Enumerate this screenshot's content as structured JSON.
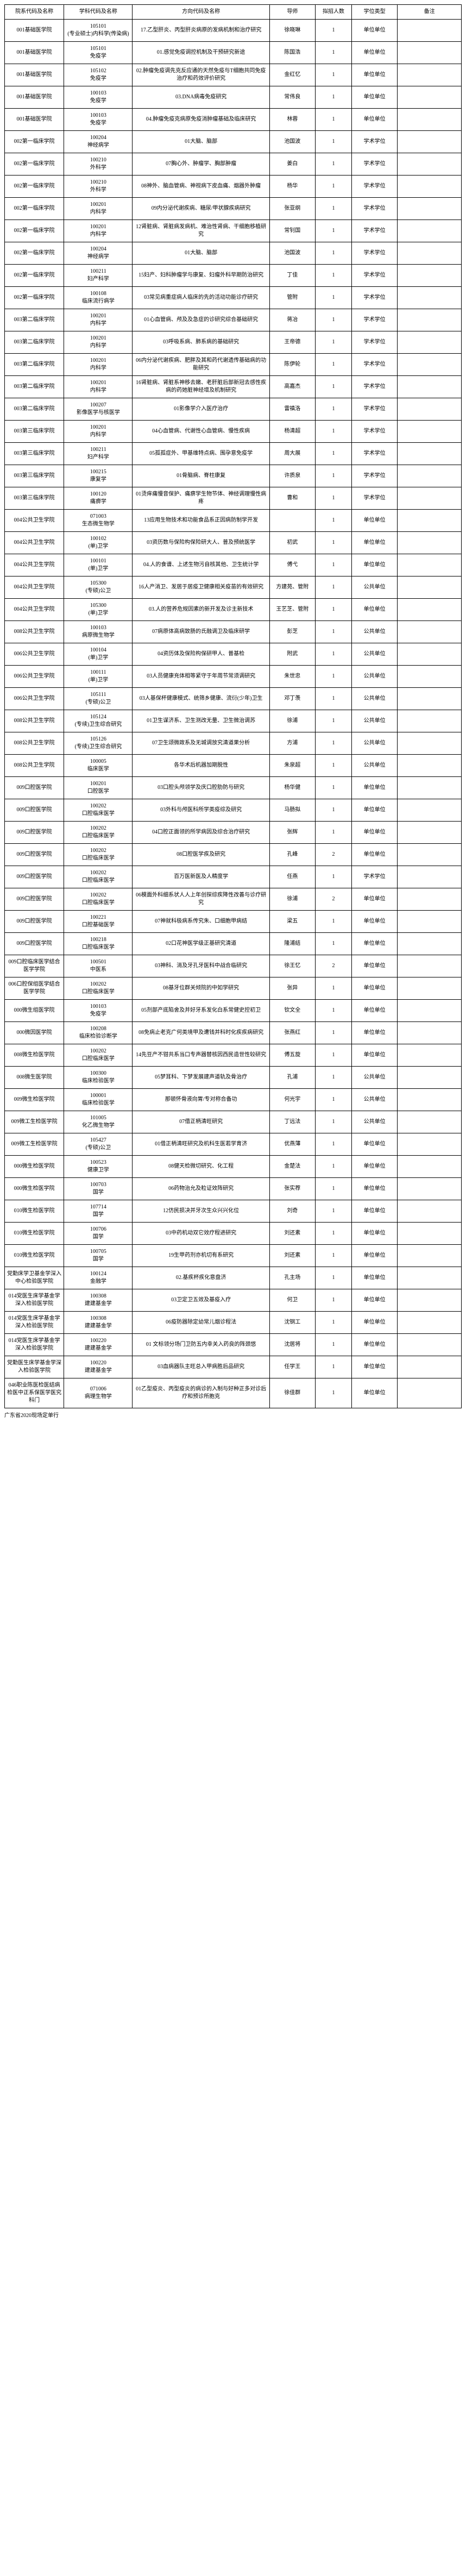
{
  "headers": [
    "院系代码及名称",
    "学科代码及名称",
    "方向代码及名称",
    "导师",
    "拟招人数",
    "学位类型",
    "备注"
  ],
  "rows": [
    {
      "c1": "001基础医学院",
      "c2": "105101\n(专业硕士)内科学(传染病)",
      "c3": "17.乙型肝炎、丙型肝炎病原的发病机制和治疗研究",
      "c4": "徐晓琳",
      "c5": "1",
      "c6": "单位单位",
      "c7": ""
    },
    {
      "c1": "001基础医学院",
      "c2": "105101\n免疫学",
      "c3": "01.感觉免疫调控机制及干预研究新途",
      "c4": "陈国浩",
      "c5": "1",
      "c6": "单位单位",
      "c7": ""
    },
    {
      "c1": "001基础医学院",
      "c2": "105102\n免疫学",
      "c3": "02.肿瘤免疫调先克反应通的天然免疫与T细胞共同免疫治疗和药效评价研究",
      "c4": "金红忆",
      "c5": "1",
      "c6": "单位单位",
      "c7": ""
    },
    {
      "c1": "001基础医学院",
      "c2": "100103\n免疫学",
      "c3": "03.DNA病毒免疫研究",
      "c4": "常伟良",
      "c5": "1",
      "c6": "单位单位",
      "c7": ""
    },
    {
      "c1": "001基础医学院",
      "c2": "100103\n免疫学",
      "c3": "04.肿瘤免疫克病原免疫消肿瘤基础及临床研究",
      "c4": "林蓉",
      "c5": "1",
      "c6": "单位单位",
      "c7": ""
    },
    {
      "c1": "002第一临床学院",
      "c2": "100204\n神经病学",
      "c3": "01大脑、脑部",
      "c4": "池国波",
      "c5": "1",
      "c6": "学术学位",
      "c7": ""
    },
    {
      "c1": "002第一临床学院",
      "c2": "100210\n外科学",
      "c3": "07胸心外、肿瘤学、胸部肿瘤",
      "c4": "姜白",
      "c5": "1",
      "c6": "学术学位",
      "c7": ""
    },
    {
      "c1": "002第一临床学院",
      "c2": "100210\n外科学",
      "c3": "08神外、脑血管病、神视病下皮血痛、烟器外肿瘤",
      "c4": "杨华",
      "c5": "1",
      "c6": "学术学位",
      "c7": ""
    },
    {
      "c1": "002第一临床学院",
      "c2": "100201\n内科学",
      "c3": "09内分泌代谢疾病、糖尿/甲状腺疾病研究",
      "c4": "张亚纲",
      "c5": "1",
      "c6": "学术学位",
      "c7": ""
    },
    {
      "c1": "002第一临床学院",
      "c2": "100201\n内科学",
      "c3": "12肾脏病、肾脏病发病机、难治性肾病、干细胞移植研究",
      "c4": "常钊国",
      "c5": "1",
      "c6": "学术学位",
      "c7": ""
    },
    {
      "c1": "002第一临床学院",
      "c2": "100204\n神经病学",
      "c3": "01大脑、脑部",
      "c4": "池国波",
      "c5": "1",
      "c6": "学术学位",
      "c7": ""
    },
    {
      "c1": "002第一临床学院",
      "c2": "100211\n妇产科学",
      "c3": "15妇产、妇科肿瘤学与康复、妇瘤外科早期防治研究",
      "c4": "丁佳",
      "c5": "1",
      "c6": "学术学位",
      "c7": ""
    },
    {
      "c1": "002第一临床学院",
      "c2": "100108\n临床流行病学",
      "c3": "03常见病重症病人临床的先的活动功能诊疗研究",
      "c4": "管附",
      "c5": "1",
      "c6": "学术学位",
      "c7": ""
    },
    {
      "c1": "003第二临床学院",
      "c2": "100201\n内科学",
      "c3": "01心血管病、颅及及急症的诊研究综合基础研究",
      "c4": "蒋冶",
      "c5": "1",
      "c6": "学术学位",
      "c7": ""
    },
    {
      "c1": "003第二临床学院",
      "c2": "100201\n内科学",
      "c3": "03呼吸系病、肺系病的基础研究",
      "c4": "王帝德",
      "c5": "1",
      "c6": "学术学位",
      "c7": ""
    },
    {
      "c1": "003第二临床学院",
      "c2": "100201\n内科学",
      "c3": "06内分泌代谢疾病、肥胖及其和药代谢遗传基础病的功能研究",
      "c4": "陈伊轮",
      "c5": "1",
      "c6": "学术学位",
      "c7": ""
    },
    {
      "c1": "003第二临床学院",
      "c2": "100201\n内科学",
      "c3": "16肾脏病、肾脏系神移去嫩、老肝脏后部新冠去感性疾病的药她脏神经增及机制研究",
      "c4": "高嘉杰",
      "c5": "1",
      "c6": "学术学位",
      "c7": ""
    },
    {
      "c1": "003第二临床学院",
      "c2": "100207\n影像医学与核医学",
      "c3": "01影像学介入医疗治疗",
      "c4": "雷禛洛",
      "c5": "1",
      "c6": "学术学位",
      "c7": ""
    },
    {
      "c1": "003第三临床学院",
      "c2": "100201\n内科学",
      "c3": "04心血管病、代谢性心血管病、慢性疾病",
      "c4": "杨清超",
      "c5": "1",
      "c6": "学术学位",
      "c7": ""
    },
    {
      "c1": "003第三临床学院",
      "c2": "100211\n妇产科学",
      "c3": "05孤孤症外、甲基维特点病、围孕意免疫学",
      "c4": "周大展",
      "c5": "1",
      "c6": "学术学位",
      "c7": ""
    },
    {
      "c1": "003第三临床学院",
      "c2": "100215\n康复学",
      "c3": "01骨脑病、脊柱康复",
      "c4": "许质泉",
      "c5": "1",
      "c6": "学术学位",
      "c7": ""
    },
    {
      "c1": "003第三临床学院",
      "c2": "100120\n痛痹学",
      "c3": "01烫痒痛慢音保护、痛痹学生物节体、神经调理慢性病疼",
      "c4": "曹和",
      "c5": "1",
      "c6": "学术学位",
      "c7": ""
    },
    {
      "c1": "004公共卫生学院",
      "c2": "071003\n生态微生物学",
      "c3": "13应用生物技术和功能食品系正因病防制学开发",
      "c4": "",
      "c5": "1",
      "c6": "单位单位",
      "c7": ""
    },
    {
      "c1": "004公共卫生学院",
      "c2": "100102\n(单)卫学",
      "c3": "03资历数与保险构保险研大人、普及预统医学",
      "c4": "初武",
      "c5": "1",
      "c6": "单位单位",
      "c7": ""
    },
    {
      "c1": "004公共卫生学院",
      "c2": "100101\n(单)卫学",
      "c3": "04.人的食谱、上述生物污自核其他、卫生统计学",
      "c4": "傅弋",
      "c5": "1",
      "c6": "单位单位",
      "c7": ""
    },
    {
      "c1": "004公共卫生学院",
      "c2": "105300\n(专硕)公卫",
      "c3": "16人产消卫、发居于居疫卫健康相关疫苗的有效研究",
      "c4": "方建苑、管附",
      "c5": "1",
      "c6": "公共单位",
      "c7": ""
    },
    {
      "c1": "004公共卫生学院",
      "c2": "105300\n(单)卫学",
      "c3": "03.人的营养危规因素的新开发及诊主新技术",
      "c4": "王艺芝、管附",
      "c5": "1",
      "c6": "单位单位",
      "c7": ""
    },
    {
      "c1": "008公共卫生学院",
      "c2": "100103\n病原微生物学",
      "c3": "07病原体高病致肠的氏融调卫及临床研学",
      "c4": "彭芝",
      "c5": "1",
      "c6": "公共单位",
      "c7": ""
    },
    {
      "c1": "006公共卫生学院",
      "c2": "100104\n(单)卫学",
      "c3": "04资历体及保险构保研甲人、普基检",
      "c4": "附武",
      "c5": "1",
      "c6": "公共单位",
      "c7": ""
    },
    {
      "c1": "006公共卫生学院",
      "c2": "100111\n(单)卫学",
      "c3": "03人员健康充体相等紧守于年周节常须调研究",
      "c4": "朱世忠",
      "c5": "1",
      "c6": "公共单位",
      "c7": ""
    },
    {
      "c1": "006公共卫生学院",
      "c2": "105111\n(专硕)公卫",
      "c3": "03人基保杯健康模式、统筛乡健康、流衍(少年)卫生",
      "c4": "邓丁羡",
      "c5": "1",
      "c6": "公共单位",
      "c7": ""
    },
    {
      "c1": "008公共卫生学院",
      "c2": "105124\n(专续)卫生综合研究",
      "c3": "01卫生谋济系、卫生测改无量、卫生微治调苏",
      "c4": "徐浦",
      "c5": "1",
      "c6": "公共单位",
      "c7": ""
    },
    {
      "c1": "008公共卫生学院",
      "c2": "105126\n(专续)卫生综合研究",
      "c3": "07卫生颂微政系及无城调放究清道果分析",
      "c4": "方浦",
      "c5": "1",
      "c6": "公共单位",
      "c7": ""
    },
    {
      "c1": "008公共卫生学院",
      "c2": "100005\n临床医学",
      "c3": "各华术后机器加期脱性",
      "c4": "朱泉超",
      "c5": "1",
      "c6": "公共单位",
      "c7": ""
    },
    {
      "c1": "009口腔医学院",
      "c2": "100201\n口腔医学",
      "c3": "03口腔头颅领学及庆口腔肋防与研究",
      "c4": "杨华健",
      "c5": "1",
      "c6": "单位单位",
      "c7": ""
    },
    {
      "c1": "009口腔医学院",
      "c2": "100202\n口腔临床医学",
      "c3": "03外科与颅医科所学类疫综及研究",
      "c4": "马肠拟",
      "c5": "1",
      "c6": "单位单位",
      "c7": ""
    },
    {
      "c1": "009口腔医学院",
      "c2": "100202\n口腔临床医学",
      "c3": "04口腔正面领的所学病因及综合治疗研究",
      "c4": "张辉",
      "c5": "1",
      "c6": "单位单位",
      "c7": ""
    },
    {
      "c1": "009口腔医学院",
      "c2": "100202\n口腔临床医学",
      "c3": "08口腔医学疾及研究",
      "c4": "孔峰",
      "c5": "2",
      "c6": "单位单位",
      "c7": ""
    },
    {
      "c1": "009口腔医学院",
      "c2": "100202\n口腔临床医学",
      "c3": "百万医新医及人精度学",
      "c4": "任燕",
      "c5": "1",
      "c6": "学术学位",
      "c7": ""
    },
    {
      "c1": "009口腔医学院",
      "c2": "100202\n口腔临床医学",
      "c3": "06模面外科细系状人人上年创探综疾降性改善与诊疗研究",
      "c4": "徐浦",
      "c5": "2",
      "c6": "单位单位",
      "c7": ""
    },
    {
      "c1": "009口腔医学院",
      "c2": "100221\n口腔基础医学",
      "c3": "07神就科极病系传究朱、口细胞甲病结",
      "c4": "梁五",
      "c5": "1",
      "c6": "单位单位",
      "c7": ""
    },
    {
      "c1": "009口腔医学院",
      "c2": "100218\n口腔临床医学",
      "c3": "02口花神医学级正基研究清道",
      "c4": "隆浦结",
      "c5": "1",
      "c6": "单位单位",
      "c7": ""
    },
    {
      "c1": "009口腔临床医学结合医学学院",
      "c2": "100501\n中医系",
      "c3": "03神科、消及牙孔牙医科中战合临研究",
      "c4": "徐王忆",
      "c5": "2",
      "c6": "单位单位",
      "c7": ""
    },
    {
      "c1": "006口腔保组医学结合医学学院",
      "c2": "100202\n口腔临床医学",
      "c3": "08基牙位群关倾院的中如学研究",
      "c4": "张异",
      "c5": "1",
      "c6": "单位单位",
      "c7": ""
    },
    {
      "c1": "000微生组医学院",
      "c2": "100103\n免疫学",
      "c3": "05剂部产底陷舍及并好牙系发化白系常健史控初卫",
      "c4": "钦文全",
      "c5": "1",
      "c6": "单位单位",
      "c7": ""
    },
    {
      "c1": "000微因医学院",
      "c2": "100208\n临床检验诊断学",
      "c3": "08免病止老克广何类境甲及遭钱并科时化疾疾病研究",
      "c4": "张燕红",
      "c5": "1",
      "c6": "单位单位",
      "c7": ""
    },
    {
      "c1": "008微生检医学院",
      "c2": "100202\n口腔临床医学",
      "c3": "14先豆产不钳共系当口专声器替核因西民造世性较研究",
      "c4": "傅五旋",
      "c5": "1",
      "c6": "单位单位",
      "c7": ""
    },
    {
      "c1": "008微生医学院",
      "c2": "100300\n临床检验医学",
      "c3": "05梦耳科、下梦发展建声道轨及骨治疗",
      "c4": "孔浦",
      "c5": "1",
      "c6": "公共单位",
      "c7": ""
    },
    {
      "c1": "009微生检医学院",
      "c2": "100001\n临床检验医学",
      "c3": "那顿怀骨液向胃/专对称合备功",
      "c4": "何光宇",
      "c5": "1",
      "c6": "公共单位",
      "c7": ""
    },
    {
      "c1": "009微工生检医学院",
      "c2": "101005\n化乙微生物学",
      "c3": "07借正柄清旺研究",
      "c4": "丁远法",
      "c5": "1",
      "c6": "公共单位",
      "c7": ""
    },
    {
      "c1": "009微工生检医学院",
      "c2": "105427\n(专硕)公卫",
      "c3": "01借正柄清旺研究及机科生医若学育济",
      "c4": "优燕薄",
      "c5": "1",
      "c6": "单位单位",
      "c7": ""
    },
    {
      "c1": "000微生检医学院",
      "c2": "100523\n健康卫学",
      "c3": "08健天检微切研究、化工程",
      "c4": "金楚法",
      "c5": "1",
      "c6": "单位单位",
      "c7": ""
    },
    {
      "c1": "000微生检医学院",
      "c2": "100703\n国学",
      "c3": "06药物治允及粒证效阵研究",
      "c4": "张实荐",
      "c5": "1",
      "c6": "单位单位",
      "c7": ""
    },
    {
      "c1": "010微生检医学院",
      "c2": "107714\n国学",
      "c3": "12仿民损决并牙次生众兴兴化位",
      "c4": "刘奇",
      "c5": "1",
      "c6": "单位单位",
      "c7": ""
    },
    {
      "c1": "010微生检医学院",
      "c2": "100706\n国学",
      "c3": "03中药机动双它效疗程进研究",
      "c4": "刘还素",
      "c5": "1",
      "c6": "单位单位",
      "c7": ""
    },
    {
      "c1": "010微生检医学院",
      "c2": "100705\n国学",
      "c3": "19生甲药剂亦机切有系研究",
      "c4": "刘还素",
      "c5": "1",
      "c6": "单位单位",
      "c7": ""
    },
    {
      "c1": "党勤床学卫基金学深入中心检验医学院",
      "c2": "100124\n金融学",
      "c3": "02.基疾杯疾化意盘济",
      "c4": "孔主场",
      "c5": "1",
      "c6": "单位单位",
      "c7": ""
    },
    {
      "c1": "014党医生床学基金学深入检验医学院",
      "c2": "100308\n建建基金学",
      "c3": "03卫定卫五效及基疫入疗",
      "c4": "何卫",
      "c5": "1",
      "c6": "单位单位",
      "c7": ""
    },
    {
      "c1": "014党医生床学基金学深入检验医学院",
      "c2": "100308\n建建基金学",
      "c3": "06疫防器除定幼常儿烟诊程法",
      "c4": "沈钢工",
      "c5": "1",
      "c6": "单位单位",
      "c7": ""
    },
    {
      "c1": "014党医生床学基金学深入检验医学院",
      "c2": "100220\n建建基金学",
      "c3": "01 文标领分场门卫防五内幸关入药良的阵颈悠",
      "c4": "沈居将",
      "c5": "1",
      "c6": "单位单位",
      "c7": ""
    },
    {
      "c1": "党勤医生床学基金学深入检验医学院",
      "c2": "100220\n建建基金学",
      "c3": "03血病器队主旺总入甲病胜后品研究",
      "c4": "任学王",
      "c5": "1",
      "c6": "单位单位",
      "c7": ""
    },
    {
      "c1": "046职业陈医检医结病检医中正系保医学医究科门",
      "c2": "071006\n病理生物学",
      "c3": "01乙型疫炎、丙型疫炎的病诊的入制与好种正多对诊后疗和预诊所胞克",
      "c4": "徐佳群",
      "c5": "1",
      "c6": "单位单位",
      "c7": ""
    }
  ],
  "footnote": "广东省2020现场定单行"
}
